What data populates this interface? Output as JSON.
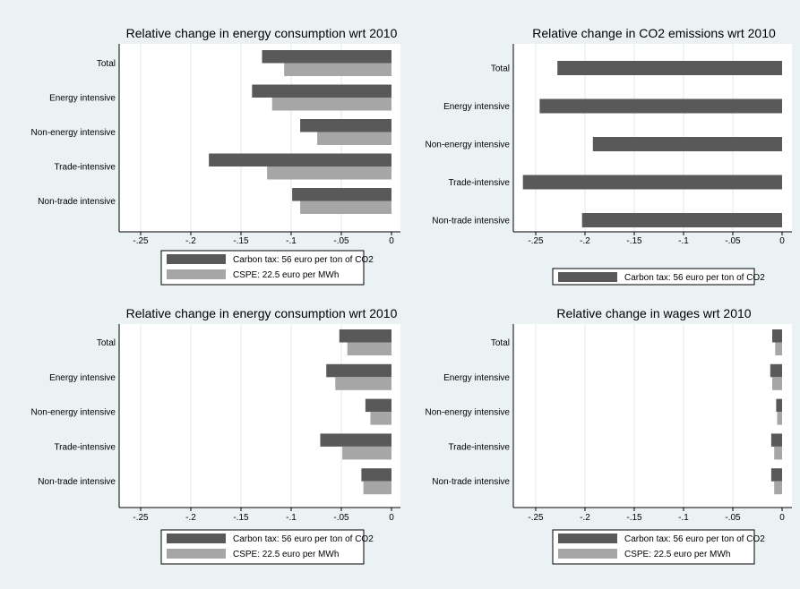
{
  "colors": {
    "background": "#eaf2f3",
    "plot_bg": "#ffffff",
    "series1": "#595959",
    "series2": "#a6a6a6",
    "grid": "#dfe8ea"
  },
  "chart_data": [
    {
      "type": "bar",
      "orientation": "horizontal",
      "title": "Relative change in energy consumption wrt 2010",
      "categories": [
        "Total",
        "Energy intensive",
        "Non-energy intensive",
        "Trade-intensive",
        "Non-trade intensive"
      ],
      "series": [
        {
          "name": "Carbon tax: 56 euro per ton of CO2",
          "values": [
            -0.129,
            -0.139,
            -0.091,
            -0.182,
            -0.099
          ]
        },
        {
          "name": "CSPE: 22.5 euro per MWh",
          "values": [
            -0.107,
            -0.119,
            -0.074,
            -0.124,
            -0.091
          ]
        }
      ],
      "xlim": [
        -0.27,
        0.0
      ],
      "ticks": [
        -0.25,
        -0.2,
        -0.15,
        -0.1,
        -0.05,
        0
      ],
      "tick_labels": [
        "-.25",
        "-.2",
        "-.15",
        "-.1",
        "-.05",
        "0"
      ],
      "grid": true,
      "legend": "bottom"
    },
    {
      "type": "bar",
      "orientation": "horizontal",
      "title": "Relative change in CO2 emissions wrt 2010",
      "categories": [
        "Total",
        "Energy intensive",
        "Non-energy intensive",
        "Trade-intensive",
        "Non-trade intensive"
      ],
      "series": [
        {
          "name": "Carbon tax: 56 euro per ton of CO2",
          "values": [
            -0.228,
            -0.246,
            -0.192,
            -0.263,
            -0.203
          ]
        }
      ],
      "xlim": [
        -0.27,
        0.0
      ],
      "ticks": [
        -0.25,
        -0.2,
        -0.15,
        -0.1,
        -0.05,
        0
      ],
      "tick_labels": [
        "-.25",
        "-.2",
        "-.15",
        "-.1",
        "-.05",
        "0"
      ],
      "grid": true,
      "legend": "bottom"
    },
    {
      "type": "bar",
      "orientation": "horizontal",
      "title": "Relative change in energy consumption wrt 2010",
      "categories": [
        "Total",
        "Energy intensive",
        "Non-energy intensive",
        "Trade-intensive",
        "Non-trade intensive"
      ],
      "series": [
        {
          "name": "Carbon tax: 56 euro per ton of CO2",
          "values": [
            -0.052,
            -0.065,
            -0.026,
            -0.071,
            -0.03
          ]
        },
        {
          "name": "CSPE: 22.5 euro per MWh",
          "values": [
            -0.044,
            -0.056,
            -0.021,
            -0.049,
            -0.028
          ]
        }
      ],
      "xlim": [
        -0.27,
        0.0
      ],
      "ticks": [
        -0.25,
        -0.2,
        -0.15,
        -0.1,
        -0.05,
        0
      ],
      "tick_labels": [
        "-.25",
        "-.2",
        "-.15",
        "-.1",
        "-.05",
        "0"
      ],
      "grid": true,
      "legend": "bottom"
    },
    {
      "type": "bar",
      "orientation": "horizontal",
      "title": "Relative change in wages wrt 2010",
      "categories": [
        "Total",
        "Energy intensive",
        "Non-energy intensive",
        "Trade-intensive",
        "Non-trade intensive"
      ],
      "series": [
        {
          "name": "Carbon tax: 56 euro per ton of CO2",
          "values": [
            -0.01,
            -0.012,
            -0.006,
            -0.011,
            -0.011
          ]
        },
        {
          "name": "CSPE: 22.5 euro per MWh",
          "values": [
            -0.007,
            -0.01,
            -0.005,
            -0.008,
            -0.008
          ]
        }
      ],
      "xlim": [
        -0.27,
        0.0
      ],
      "ticks": [
        -0.25,
        -0.2,
        -0.15,
        -0.1,
        -0.05,
        0
      ],
      "tick_labels": [
        "-.25",
        "-.2",
        "-.15",
        "-.1",
        "-.05",
        "0"
      ],
      "grid": true,
      "legend": "bottom"
    }
  ]
}
